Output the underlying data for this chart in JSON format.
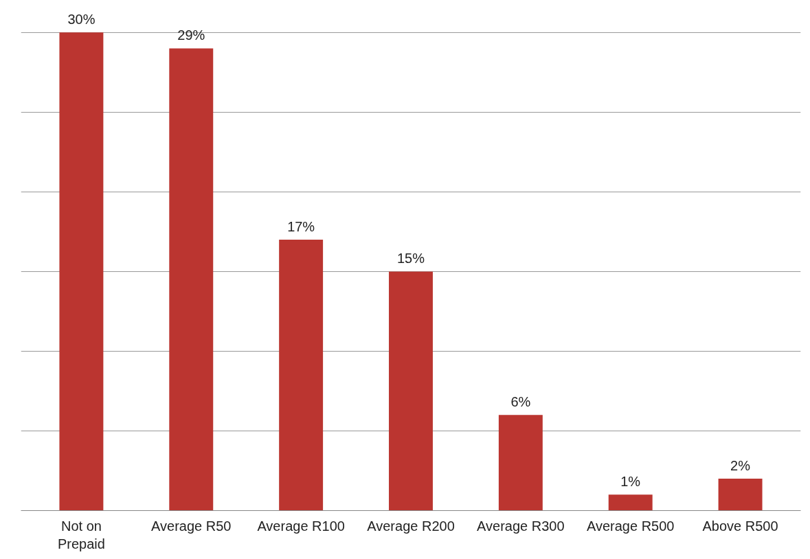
{
  "chart_data": {
    "type": "bar",
    "categories": [
      "Not on\nPrepaid",
      "Average R50",
      "Average R100",
      "Average R200",
      "Average R300",
      "Average R500",
      "Above R500"
    ],
    "values": [
      30,
      29,
      17,
      15,
      6,
      1,
      2
    ],
    "color": "#bb3530",
    "value_labels": [
      "30%",
      "29%",
      "17%",
      "15%",
      "6%",
      "1%",
      "2%"
    ],
    "grid": "y",
    "tick_labels": "x"
  }
}
